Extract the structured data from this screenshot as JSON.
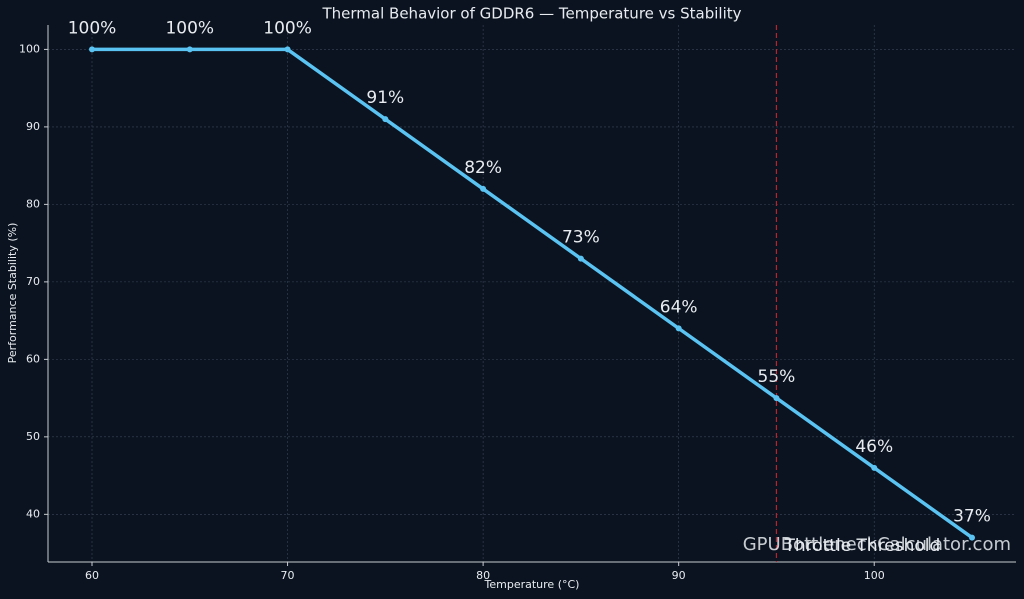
{
  "chart_data": {
    "type": "line",
    "title": "Thermal Behavior of GDDR6 — Temperature vs Stability",
    "x_label": "Temperature (°C)",
    "y_label": "Performance Stability (%)",
    "x": [
      60,
      65,
      70,
      75,
      80,
      85,
      90,
      95,
      100,
      105
    ],
    "values": [
      100,
      100,
      100,
      91,
      82,
      73,
      64,
      55,
      46,
      37
    ],
    "value_labels": [
      "100%",
      "100%",
      "100%",
      "91%",
      "82%",
      "73%",
      "64%",
      "55%",
      "46%",
      "37%"
    ],
    "color": "#5bc3f2",
    "xlim": [
      57.75,
      107.25
    ],
    "ylim": [
      33.85,
      103.15
    ],
    "xticks": [
      60,
      70,
      80,
      90,
      100
    ],
    "yticks": [
      40,
      50,
      60,
      70,
      80,
      90,
      100
    ],
    "grid": true,
    "threshold": {
      "x": 95,
      "label": "Throttle Threshold",
      "color": "#b8232f"
    },
    "watermark": "GPUBottleneckCalculator.com"
  }
}
